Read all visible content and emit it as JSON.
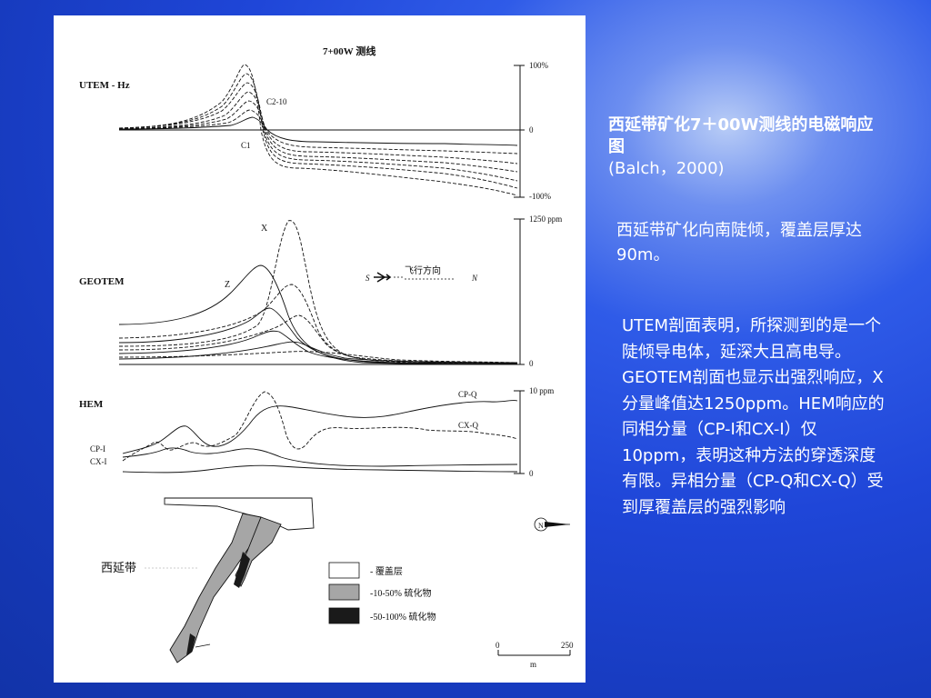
{
  "figure": {
    "header": "7+00W  测线",
    "utem": {
      "label": "UTEM - Hz",
      "scale_top": "100%",
      "scale_mid": "0",
      "scale_bottom": "-100%",
      "curve_label_top": "C2-10",
      "curve_label_bottom": "C1"
    },
    "geotem": {
      "label": "GEOTEM",
      "scale_top": "1250 ppm",
      "scale_bottom": "0",
      "comp_x": "X",
      "comp_z": "Z",
      "flight_label": "飞行方向",
      "flight_s": "S",
      "flight_n": "N"
    },
    "hem": {
      "label": "HEM",
      "scale_top": "10 ppm",
      "scale_bottom": "0",
      "cpq": "CP-Q",
      "cxq": "CX-Q",
      "cpi": "CP-I",
      "cxi": "CX-I"
    },
    "section": {
      "place_label": "西延带",
      "legend": [
        {
          "label": "- 覆盖层",
          "color": "#ffffff"
        },
        {
          "label": "-10-50% 硫化物",
          "color": "#a6a6a6"
        },
        {
          "label": "-50-100% 硫化物",
          "color": "#1a1a1a"
        }
      ],
      "scale_start": "0",
      "scale_end": "250",
      "scale_unit": "m",
      "north": "N"
    }
  },
  "sidebar": {
    "title": "西延带矿化7＋00W测线的电磁响应图",
    "citation": "(Balch，2000)",
    "para1": "西延带矿化向南陡倾，覆盖层厚达90m。",
    "para2": "UTEM剖面表明，所探测到的是一个陡倾导电体，延深大且高电导。GEOTEM剖面也显示出强烈响应，X分量峰值达1250ppm。HEM响应的同相分量（CP-I和CX-I）仅10ppm，表明这种方法的穿透深度有限。异相分量（CP-Q和CX-Q）受到厚覆盖层的强烈影响"
  }
}
